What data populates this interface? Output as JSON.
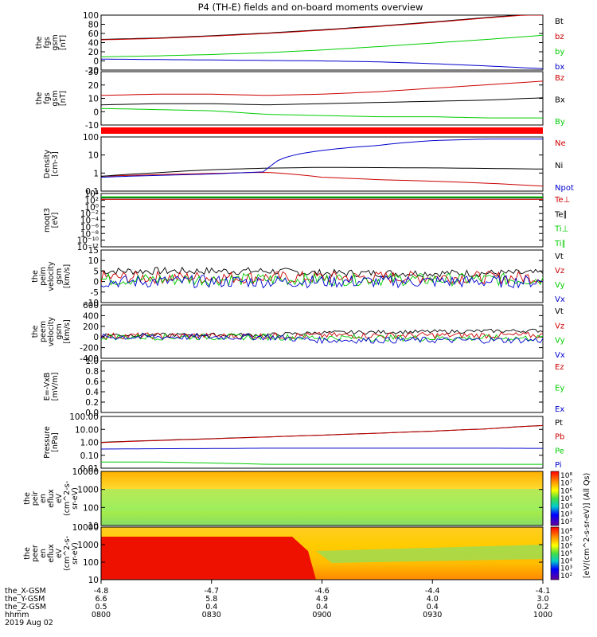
{
  "title": "P4 (TH-E) fields and on-board moments overview",
  "colors": {
    "black": "#000000",
    "red": "#cc0000",
    "green": "#00cc00",
    "blue": "#0000cc"
  },
  "chart_data": [
    {
      "type": "line",
      "ylabel": [
        "the",
        "fgs",
        "gsm",
        "[nT]"
      ],
      "ylim": [
        -20,
        100
      ],
      "yticks": [
        "100",
        "80",
        "60",
        "40",
        "20",
        "0",
        "-20"
      ],
      "series": [
        {
          "name": "Bt",
          "color": "black",
          "values": [
            47,
            50,
            55,
            61,
            68,
            76,
            85,
            95,
            104
          ]
        },
        {
          "name": "bz",
          "color": "red",
          "values": [
            46,
            49,
            54,
            60,
            67,
            75,
            84,
            94,
            103
          ]
        },
        {
          "name": "by",
          "color": "green",
          "values": [
            9,
            11,
            14,
            18,
            24,
            31,
            39,
            47,
            56
          ]
        },
        {
          "name": "bx",
          "color": "blue",
          "values": [
            4,
            3,
            2,
            1,
            0,
            -2,
            -6,
            -11,
            -17
          ]
        }
      ]
    },
    {
      "type": "line",
      "ylabel": [
        "the",
        "fgs",
        "gsm",
        "[nT]"
      ],
      "ylim": [
        -15,
        30
      ],
      "yticks": [
        "30",
        "20",
        "10",
        "0",
        "-10"
      ],
      "series": [
        {
          "name": "Bz",
          "color": "red",
          "values": [
            10,
            11,
            11,
            10,
            11,
            13,
            16,
            19,
            22
          ]
        },
        {
          "name": "Bx",
          "color": "black",
          "values": [
            2,
            3,
            3,
            2,
            3,
            4,
            5,
            6,
            8
          ]
        },
        {
          "name": "By",
          "color": "green",
          "values": [
            -1,
            -2,
            -3,
            -6,
            -7,
            -8,
            -8,
            -9,
            -9
          ]
        }
      ]
    },
    {
      "type": "bar",
      "ylabel": [],
      "values": []
    },
    {
      "type": "line",
      "log": true,
      "ylabel": [
        "Density",
        "[cm-3]"
      ],
      "ylim": [
        0.1,
        200
      ],
      "yticks": [
        "100",
        "10",
        "1",
        "0.1"
      ],
      "series": [
        {
          "name": "Ne",
          "color": "red",
          "values": [
            0.8,
            1.0,
            1.2,
            1.4,
            0.7,
            0.5,
            0.4,
            0.3,
            0.2
          ]
        },
        {
          "name": "Ni",
          "color": "black",
          "values": [
            0.8,
            1.3,
            2.0,
            2.5,
            2.8,
            2.7,
            2.6,
            2.4,
            2.2
          ]
        },
        {
          "name": "Npot",
          "color": "blue",
          "values": [
            0.7,
            0.9,
            1.1,
            1.5,
            30,
            60,
            120,
            150,
            150
          ]
        }
      ]
    },
    {
      "type": "line",
      "log": true,
      "ylabel": [
        "moqt3",
        "[eV]"
      ],
      "ylim": [
        1e-13,
        100000.0
      ],
      "yticks": [
        "10⁴",
        "10²",
        "10⁰",
        "10⁻²",
        "10⁻⁴",
        "10⁻⁶",
        "10⁻⁸",
        "10⁻¹⁰",
        "10⁻¹²"
      ],
      "series": [
        {
          "name": "Te⊥",
          "color": "red",
          "values": [
            1000,
            1000,
            1000,
            1000,
            1000,
            1000,
            1000,
            1000,
            1000
          ]
        },
        {
          "name": "Te∥",
          "color": "black",
          "values": [
            3000,
            3000,
            3000,
            3000,
            3000,
            3000,
            3000,
            3000,
            3000
          ]
        },
        {
          "name": "Ti⊥",
          "color": "green",
          "values": [
            8000,
            8000,
            8000,
            8000,
            8000,
            8000,
            8000,
            8000,
            8000
          ]
        },
        {
          "name": "Ti∥",
          "color": "green",
          "values": [
            5000,
            5000,
            5000,
            5000,
            5000,
            5000,
            5000,
            5000,
            5000
          ]
        }
      ]
    },
    {
      "type": "line",
      "ylabel": [
        "the",
        "peim",
        "velocity",
        "gsm",
        "[km/s]"
      ],
      "ylim": [
        -10,
        15
      ],
      "yticks": [
        "15",
        "10",
        "5",
        "0",
        "-5",
        "-10"
      ],
      "series": [
        {
          "name": "Vt",
          "color": "black",
          "values": [
            5,
            5,
            5,
            5,
            4,
            4,
            4,
            4,
            4
          ]
        },
        {
          "name": "Vz",
          "color": "red",
          "values": [
            2,
            2,
            2,
            2,
            2,
            2,
            2,
            2,
            2
          ]
        },
        {
          "name": "Vy",
          "color": "green",
          "values": [
            1,
            1,
            1,
            1,
            1,
            1,
            1,
            1,
            1
          ]
        },
        {
          "name": "Vx",
          "color": "blue",
          "values": [
            0,
            0,
            0,
            0,
            0,
            0,
            0,
            0,
            0
          ]
        }
      ]
    },
    {
      "type": "line",
      "ylabel": [
        "the",
        "peem",
        "velocity",
        "gsm",
        "[km/s]"
      ],
      "ylim": [
        -400,
        600
      ],
      "yticks": [
        "600",
        "400",
        "200",
        "0",
        "-200",
        "-400"
      ],
      "series": [
        {
          "name": "Vt",
          "color": "black",
          "values": [
            40,
            40,
            40,
            40,
            80,
            90,
            100,
            110,
            120
          ]
        },
        {
          "name": "Vz",
          "color": "red",
          "values": [
            20,
            20,
            20,
            20,
            30,
            30,
            30,
            30,
            30
          ]
        },
        {
          "name": "Vy",
          "color": "green",
          "values": [
            0,
            0,
            0,
            0,
            -10,
            -20,
            -20,
            -20,
            -20
          ]
        },
        {
          "name": "Vx",
          "color": "blue",
          "values": [
            0,
            0,
            0,
            0,
            -60,
            -60,
            -60,
            -60,
            -60
          ]
        }
      ]
    },
    {
      "type": "line",
      "ylabel": [
        "E=-VxB",
        "[mV/m]"
      ],
      "ylim": [
        0,
        1
      ],
      "yticks": [
        "1.0",
        "0.8",
        "0.6",
        "0.4",
        "0.2",
        "0.0"
      ],
      "series": [
        {
          "name": "Ez",
          "color": "red",
          "values": []
        },
        {
          "name": "Ey",
          "color": "green",
          "values": []
        },
        {
          "name": "Ex",
          "color": "blue",
          "values": []
        }
      ]
    },
    {
      "type": "line",
      "log": true,
      "ylabel": [
        "Pressure",
        "[nPa]"
      ],
      "ylim": [
        0.01,
        100
      ],
      "yticks": [
        "100.00",
        "10.00",
        "1.00",
        "0.10",
        "0.01"
      ],
      "series": [
        {
          "name": "Pt",
          "color": "black",
          "values": [
            1.0,
            1.4,
            1.9,
            2.6,
            3.6,
            5.0,
            7.3,
            11,
            20
          ]
        },
        {
          "name": "Pb",
          "color": "red",
          "values": [
            0.95,
            1.35,
            1.85,
            2.55,
            3.55,
            4.95,
            7.2,
            10.8,
            19.5
          ]
        },
        {
          "name": "Pe",
          "color": "green",
          "values": [
            0.03,
            0.03,
            0.025,
            0.02,
            0.02,
            0.02,
            0.02,
            0.02,
            0.02
          ]
        },
        {
          "name": "Pi",
          "color": "blue",
          "values": [
            0.3,
            0.32,
            0.33,
            0.35,
            0.35,
            0.35,
            0.35,
            0.35,
            0.34
          ]
        }
      ]
    },
    {
      "type": "heatmap",
      "ylabel": [
        "the",
        "peir",
        "en",
        "eflux",
        "eV",
        "(cm^2-s-",
        "sr-eV)"
      ],
      "yticks": [
        "10000",
        "1000",
        "100",
        "10"
      ],
      "colorbar": {
        "label": "[eV/(cm^2-s-sr-eV)] (All Qs)",
        "ticks": [
          "10⁸",
          "10⁷",
          "10⁶",
          "10⁵",
          "10⁴",
          "10³",
          "10²"
        ]
      }
    },
    {
      "type": "heatmap",
      "ylabel": [
        "the",
        "peer",
        "en",
        "eflux",
        "eV",
        "(cm^2-s-",
        "sr-eV)"
      ],
      "yticks": [
        "10000",
        "1000",
        "100",
        "10"
      ],
      "colorbar": {
        "ticks": [
          "10⁸",
          "10⁷",
          "10⁶",
          "10⁵",
          "10⁴",
          "10³",
          "10²"
        ]
      }
    }
  ],
  "xaxis": {
    "labels": [
      "the_X-GSM",
      "the_Y-GSM",
      "the_Z-GSM",
      "hhmm",
      "2019 Aug 02"
    ],
    "ticks": [
      {
        "x": "-4.8",
        "y": "6.6",
        "z": "0.5",
        "t": "0800"
      },
      {
        "x": "-4.7",
        "y": "5.8",
        "z": "0.4",
        "t": "0830"
      },
      {
        "x": "-4.6",
        "y": "4.9",
        "z": "0.4",
        "t": "0900"
      },
      {
        "x": "-4.4",
        "y": "4.0",
        "z": "0.4",
        "t": "0930"
      },
      {
        "x": "-4.1",
        "y": "3.0",
        "z": "0.2",
        "t": "1000"
      }
    ]
  }
}
